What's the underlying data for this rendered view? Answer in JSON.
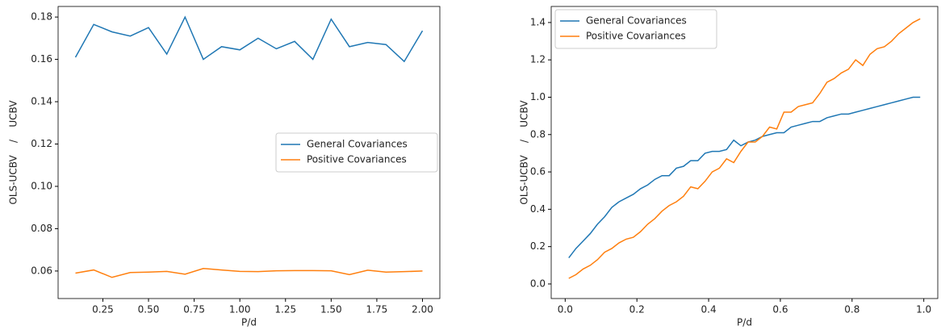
{
  "chart_data": [
    {
      "type": "line",
      "xlabel": "P/d",
      "ylabel": "OLS-UCBV    /    UCBV",
      "legend": "center right",
      "x": [
        0.1,
        0.2,
        0.3,
        0.4,
        0.5,
        0.6,
        0.7,
        0.8,
        0.9,
        1.0,
        1.1,
        1.2,
        1.3,
        1.4,
        1.5,
        1.6,
        1.7,
        1.8,
        1.9,
        2.0
      ],
      "series": [
        {
          "name": "General Covariances",
          "color": "#1f77b4",
          "values": [
            0.161,
            0.1765,
            0.173,
            0.171,
            0.175,
            0.1625,
            0.18,
            0.16,
            0.166,
            0.1645,
            0.17,
            0.165,
            0.1685,
            0.16,
            0.179,
            0.166,
            0.168,
            0.167,
            0.159,
            0.1735
          ]
        },
        {
          "name": "Positive Covariances",
          "color": "#ff7f0e",
          "values": [
            0.059,
            0.0605,
            0.057,
            0.0593,
            0.0595,
            0.0598,
            0.0585,
            0.0612,
            0.0605,
            0.0598,
            0.0597,
            0.0601,
            0.0602,
            0.0602,
            0.0601,
            0.0583,
            0.0604,
            0.0595,
            0.0597,
            0.06
          ]
        }
      ],
      "xlim": [
        0.005,
        2.095
      ],
      "xticks": [
        0.25,
        {
          "value": 0.5,
          "label": "0.50"
        },
        0.75,
        {
          "value": 1,
          "label": "1.00"
        },
        1.25,
        {
          "value": 1.5,
          "label": "1.50"
        },
        1.75,
        {
          "value": 2,
          "label": "2.00"
        }
      ],
      "ylim": [
        0.047,
        0.185
      ],
      "yticks": [
        0.06,
        0.08,
        {
          "value": 0.1,
          "label": "0.10"
        },
        0.12,
        0.14,
        0.16,
        0.18
      ]
    },
    {
      "type": "line",
      "xlabel": "P/d",
      "ylabel": "OLS-UCBV    /    UCBV",
      "legend": "upper left",
      "x": [
        0.01,
        0.03,
        0.05,
        0.07,
        0.09,
        0.11,
        0.13,
        0.15,
        0.17,
        0.19,
        0.21,
        0.23,
        0.25,
        0.27,
        0.29,
        0.31,
        0.33,
        0.35,
        0.37,
        0.39,
        0.41,
        0.43,
        0.45,
        0.47,
        0.49,
        0.51,
        0.53,
        0.55,
        0.57,
        0.59,
        0.61,
        0.63,
        0.65,
        0.67,
        0.69,
        0.71,
        0.73,
        0.75,
        0.77,
        0.79,
        0.81,
        0.83,
        0.85,
        0.87,
        0.89,
        0.91,
        0.93,
        0.95,
        0.97,
        0.99
      ],
      "series": [
        {
          "name": "General Covariances",
          "color": "#1f77b4",
          "values": [
            0.14,
            0.19,
            0.23,
            0.27,
            0.32,
            0.36,
            0.41,
            0.44,
            0.46,
            0.48,
            0.51,
            0.53,
            0.56,
            0.58,
            0.58,
            0.62,
            0.63,
            0.66,
            0.66,
            0.7,
            0.71,
            0.71,
            0.72,
            0.77,
            0.74,
            0.76,
            0.77,
            0.79,
            0.8,
            0.81,
            0.81,
            0.84,
            0.85,
            0.86,
            0.87,
            0.87,
            0.89,
            0.9,
            0.91,
            0.91,
            0.92,
            0.93,
            0.94,
            0.95,
            0.96,
            0.97,
            0.98,
            0.99,
            1.0,
            1.0
          ]
        },
        {
          "name": "Positive Covariances",
          "color": "#ff7f0e",
          "values": [
            0.03,
            0.05,
            0.08,
            0.1,
            0.13,
            0.17,
            0.19,
            0.22,
            0.24,
            0.25,
            0.28,
            0.32,
            0.35,
            0.39,
            0.42,
            0.44,
            0.47,
            0.52,
            0.51,
            0.55,
            0.6,
            0.62,
            0.67,
            0.65,
            0.71,
            0.76,
            0.76,
            0.79,
            0.84,
            0.83,
            0.92,
            0.92,
            0.95,
            0.96,
            0.97,
            1.02,
            1.08,
            1.1,
            1.13,
            1.15,
            1.2,
            1.17,
            1.23,
            1.26,
            1.27,
            1.3,
            1.34,
            1.37,
            1.4,
            1.42
          ]
        }
      ],
      "xlim": [
        -0.039,
        1.039
      ],
      "xticks": [
        {
          "value": 0,
          "label": "0.0"
        },
        0.2,
        0.4,
        0.6,
        0.8,
        {
          "value": 1,
          "label": "1.0"
        }
      ],
      "ylim": [
        -0.078,
        1.486
      ],
      "yticks": [
        {
          "value": 0,
          "label": "0.0"
        },
        0.2,
        0.4,
        0.6,
        0.8,
        {
          "value": 1,
          "label": "1.0"
        },
        1.2,
        1.4
      ]
    }
  ]
}
